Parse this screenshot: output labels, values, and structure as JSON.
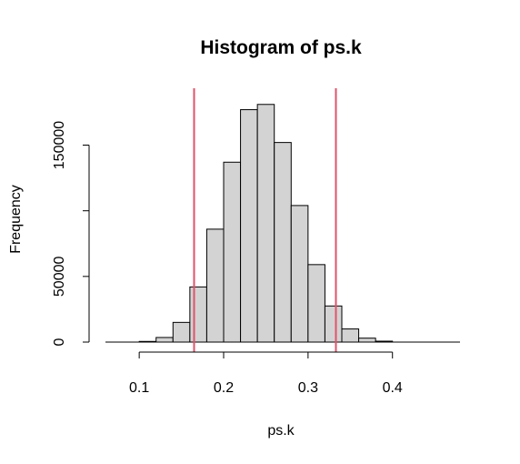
{
  "chart_data": {
    "type": "bar",
    "title": "Histogram of ps.k",
    "xlabel": "ps.k",
    "ylabel": "Frequency",
    "bins": [
      {
        "x0": 0.1,
        "x1": 0.12,
        "count": 500
      },
      {
        "x0": 0.12,
        "x1": 0.14,
        "count": 3500
      },
      {
        "x0": 0.14,
        "x1": 0.16,
        "count": 15000
      },
      {
        "x0": 0.16,
        "x1": 0.18,
        "count": 42000
      },
      {
        "x0": 0.18,
        "x1": 0.2,
        "count": 86000
      },
      {
        "x0": 0.2,
        "x1": 0.22,
        "count": 137000
      },
      {
        "x0": 0.22,
        "x1": 0.24,
        "count": 177000
      },
      {
        "x0": 0.24,
        "x1": 0.26,
        "count": 181000
      },
      {
        "x0": 0.26,
        "x1": 0.28,
        "count": 152000
      },
      {
        "x0": 0.28,
        "x1": 0.3,
        "count": 104000
      },
      {
        "x0": 0.3,
        "x1": 0.32,
        "count": 59000
      },
      {
        "x0": 0.32,
        "x1": 0.34,
        "count": 27500
      },
      {
        "x0": 0.34,
        "x1": 0.36,
        "count": 10000
      },
      {
        "x0": 0.36,
        "x1": 0.38,
        "count": 3000
      },
      {
        "x0": 0.38,
        "x1": 0.4,
        "count": 700
      }
    ],
    "vlines": [
      0.165,
      0.333
    ],
    "vline_color": "#DF536B",
    "bar_fill": "#D3D3D3",
    "bar_stroke": "#000000",
    "xlim": [
      0.06,
      0.48
    ],
    "ylim": [
      0,
      185000
    ],
    "xticks": [
      0.1,
      0.2,
      0.3,
      0.4
    ],
    "xtick_labels": [
      "0.1",
      "0.2",
      "0.3",
      "0.4"
    ],
    "yticks": [
      0,
      50000,
      100000,
      150000
    ],
    "ytick_labels": [
      "0",
      "50000",
      "",
      "150000"
    ],
    "grid": false
  }
}
